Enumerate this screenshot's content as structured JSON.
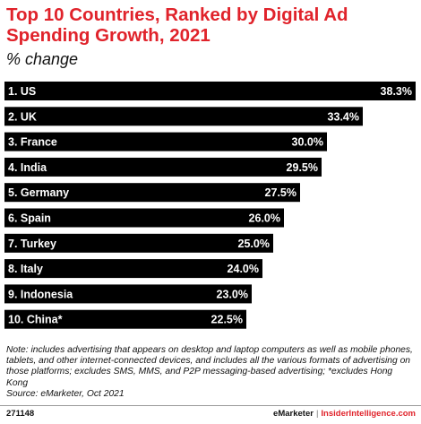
{
  "title": "Top 10 Countries, Ranked by Digital Ad Spending Growth, 2021",
  "subtitle": "% change",
  "chart_data": {
    "type": "bar",
    "orientation": "horizontal",
    "categories": [
      "1. US",
      "2. UK",
      "3. France",
      "4. India",
      "5. Germany",
      "6. Spain",
      "7. Turkey",
      "8. Italy",
      "9. Indonesia",
      "10. China*"
    ],
    "values": [
      38.3,
      33.4,
      30.0,
      29.5,
      27.5,
      26.0,
      25.0,
      24.0,
      23.0,
      22.5
    ],
    "value_labels": [
      "38.3%",
      "33.4%",
      "30.0%",
      "29.5%",
      "27.5%",
      "26.0%",
      "25.0%",
      "24.0%",
      "23.0%",
      "22.5%"
    ],
    "bar_color": "#000000",
    "label_color": "#ffffff",
    "xlim": [
      0,
      38.3
    ],
    "grid": false
  },
  "note": "Note: includes advertising that appears on desktop and laptop computers as well as mobile phones, tablets, and other internet-connected devices, and includes all the various formats of advertising on those platforms; excludes SMS, MMS, and P2P messaging-based advertising; *excludes Hong Kong",
  "source": "Source: eMarketer, Oct 2021",
  "footer": {
    "id": "271148",
    "brand": "eMarketer",
    "separator": "|",
    "site": "InsiderIntelligence.com"
  },
  "colors": {
    "title": "#e0232b",
    "accent": "#e0232b",
    "bar": "#000000"
  }
}
